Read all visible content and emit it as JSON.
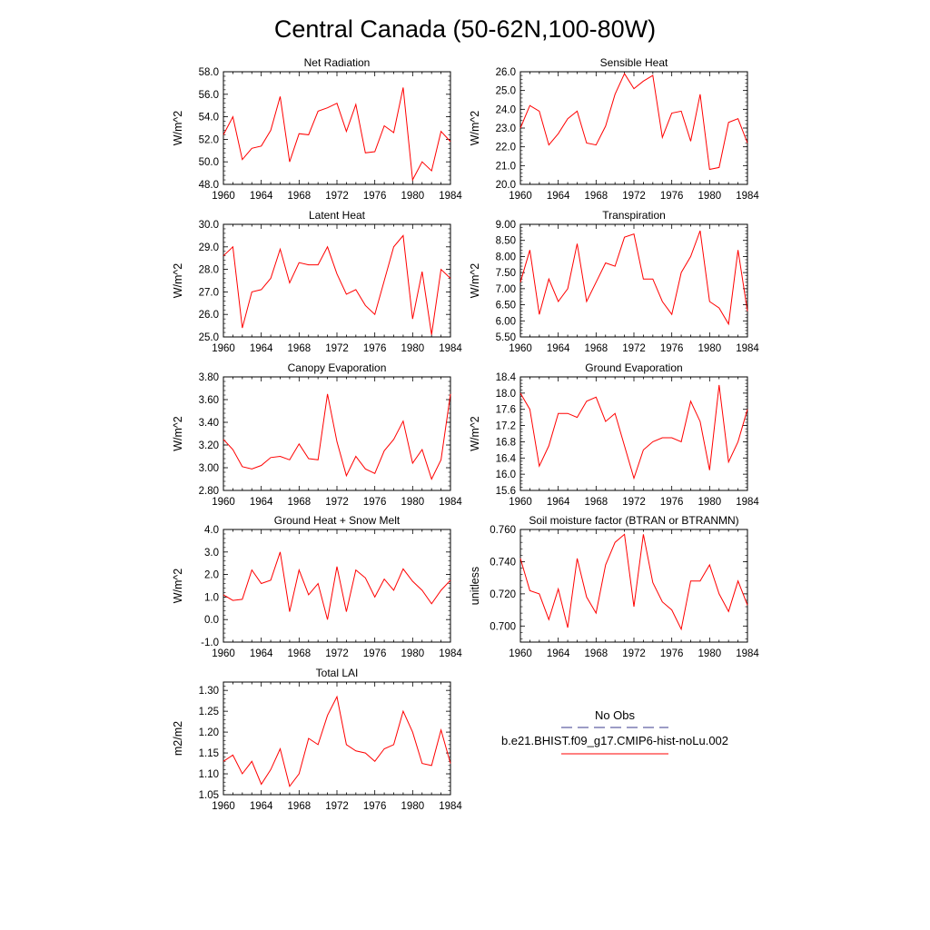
{
  "figure": {
    "title": "Central Canada (50-62N,100-80W)"
  },
  "legend": {
    "entries": [
      {
        "label": "No Obs",
        "color": "#3a3a8c",
        "style": "dashed"
      },
      {
        "label": "b.e21.BHIST.f09_g17.CMIP6-hist-noLu.002",
        "color": "#ff0000",
        "style": "solid"
      }
    ]
  },
  "colors": {
    "series": "#ff0000",
    "axis": "#000000"
  },
  "chart_data": [
    {
      "type": "line",
      "title": "Net Radiation",
      "ylabel": "W/m^2",
      "xlim": [
        1960,
        1984
      ],
      "ylim": [
        48.0,
        58.0
      ],
      "xticks": [
        1960,
        1964,
        1968,
        1972,
        1976,
        1980,
        1984
      ],
      "xtick_labels": [
        "1960",
        "1964",
        "1968",
        "1972",
        "1976",
        "1980",
        "1984"
      ],
      "yticks": [
        48,
        50,
        52,
        54,
        56,
        58
      ],
      "ytick_labels": [
        "48.0",
        "50.0",
        "52.0",
        "54.0",
        "56.0",
        "58.0"
      ],
      "x": [
        1960,
        1961,
        1962,
        1963,
        1964,
        1965,
        1966,
        1967,
        1968,
        1969,
        1970,
        1971,
        1972,
        1973,
        1974,
        1975,
        1976,
        1977,
        1978,
        1979,
        1980,
        1981,
        1982,
        1983,
        1984
      ],
      "series": [
        {
          "name": "b.e21.BHIST.f09_g17.CMIP6-hist-noLu.002",
          "values": [
            52.4,
            54.0,
            50.2,
            51.2,
            51.4,
            52.8,
            55.8,
            50.0,
            52.5,
            52.4,
            54.5,
            54.8,
            55.2,
            52.7,
            55.1,
            50.8,
            50.9,
            53.2,
            52.6,
            56.6,
            48.4,
            50.0,
            49.2,
            52.7,
            51.8
          ]
        }
      ]
    },
    {
      "type": "line",
      "title": "Sensible Heat",
      "ylabel": "W/m^2",
      "xlim": [
        1960,
        1984
      ],
      "ylim": [
        20.0,
        26.0
      ],
      "xticks": [
        1960,
        1964,
        1968,
        1972,
        1976,
        1980,
        1984
      ],
      "xtick_labels": [
        "1960",
        "1964",
        "1968",
        "1972",
        "1976",
        "1980",
        "1984"
      ],
      "yticks": [
        20,
        21,
        22,
        23,
        24,
        25,
        26
      ],
      "ytick_labels": [
        "20.0",
        "21.0",
        "22.0",
        "23.0",
        "24.0",
        "25.0",
        "26.0"
      ],
      "x": [
        1960,
        1961,
        1962,
        1963,
        1964,
        1965,
        1966,
        1967,
        1968,
        1969,
        1970,
        1971,
        1972,
        1973,
        1974,
        1975,
        1976,
        1977,
        1978,
        1979,
        1980,
        1981,
        1982,
        1983,
        1984
      ],
      "series": [
        {
          "name": "b.e21.BHIST.f09_g17.CMIP6-hist-noLu.002",
          "values": [
            23.0,
            24.2,
            23.9,
            22.1,
            22.7,
            23.5,
            23.9,
            22.2,
            22.1,
            23.1,
            24.8,
            25.9,
            25.1,
            25.5,
            25.8,
            22.5,
            23.8,
            23.9,
            22.3,
            24.8,
            20.8,
            20.9,
            23.3,
            23.5,
            22.2
          ]
        }
      ]
    },
    {
      "type": "line",
      "title": "Latent Heat",
      "ylabel": "W/m^2",
      "xlim": [
        1960,
        1984
      ],
      "ylim": [
        25.0,
        30.0
      ],
      "xticks": [
        1960,
        1964,
        1968,
        1972,
        1976,
        1980,
        1984
      ],
      "xtick_labels": [
        "1960",
        "1964",
        "1968",
        "1972",
        "1976",
        "1980",
        "1984"
      ],
      "yticks": [
        25,
        26,
        27,
        28,
        29,
        30
      ],
      "ytick_labels": [
        "25.0",
        "26.0",
        "27.0",
        "28.0",
        "29.0",
        "30.0"
      ],
      "x": [
        1960,
        1961,
        1962,
        1963,
        1964,
        1965,
        1966,
        1967,
        1968,
        1969,
        1970,
        1971,
        1972,
        1973,
        1974,
        1975,
        1976,
        1977,
        1978,
        1979,
        1980,
        1981,
        1982,
        1983,
        1984
      ],
      "series": [
        {
          "name": "b.e21.BHIST.f09_g17.CMIP6-hist-noLu.002",
          "values": [
            28.6,
            29.0,
            25.4,
            27.0,
            27.1,
            27.6,
            28.9,
            27.4,
            28.3,
            28.2,
            28.2,
            29.0,
            27.8,
            26.9,
            27.1,
            26.4,
            26.0,
            27.5,
            29.0,
            29.5,
            25.8,
            27.9,
            25.1,
            28.0,
            27.6
          ]
        }
      ]
    },
    {
      "type": "line",
      "title": "Transpiration",
      "ylabel": "W/m^2",
      "xlim": [
        1960,
        1984
      ],
      "ylim": [
        5.5,
        9.0
      ],
      "xticks": [
        1960,
        1964,
        1968,
        1972,
        1976,
        1980,
        1984
      ],
      "xtick_labels": [
        "1960",
        "1964",
        "1968",
        "1972",
        "1976",
        "1980",
        "1984"
      ],
      "yticks": [
        5.5,
        6.0,
        6.5,
        7.0,
        7.5,
        8.0,
        8.5,
        9.0
      ],
      "ytick_labels": [
        "5.50",
        "6.00",
        "6.50",
        "7.00",
        "7.50",
        "8.00",
        "8.50",
        "9.00"
      ],
      "x": [
        1960,
        1961,
        1962,
        1963,
        1964,
        1965,
        1966,
        1967,
        1968,
        1969,
        1970,
        1971,
        1972,
        1973,
        1974,
        1975,
        1976,
        1977,
        1978,
        1979,
        1980,
        1981,
        1982,
        1983,
        1984
      ],
      "series": [
        {
          "name": "b.e21.BHIST.f09_g17.CMIP6-hist-noLu.002",
          "values": [
            7.2,
            8.2,
            6.2,
            7.3,
            6.6,
            7.0,
            8.4,
            6.6,
            7.2,
            7.8,
            7.7,
            8.6,
            8.7,
            7.3,
            7.3,
            6.6,
            6.2,
            7.5,
            8.0,
            8.8,
            6.6,
            6.4,
            5.9,
            8.2,
            6.3
          ]
        }
      ]
    },
    {
      "type": "line",
      "title": "Canopy Evaporation",
      "ylabel": "W/m^2",
      "xlim": [
        1960,
        1984
      ],
      "ylim": [
        2.8,
        3.8
      ],
      "xticks": [
        1960,
        1964,
        1968,
        1972,
        1976,
        1980,
        1984
      ],
      "xtick_labels": [
        "1960",
        "1964",
        "1968",
        "1972",
        "1976",
        "1980",
        "1984"
      ],
      "yticks": [
        2.8,
        3.0,
        3.2,
        3.4,
        3.6,
        3.8
      ],
      "ytick_labels": [
        "2.80",
        "3.00",
        "3.20",
        "3.40",
        "3.60",
        "3.80"
      ],
      "x": [
        1960,
        1961,
        1962,
        1963,
        1964,
        1965,
        1966,
        1967,
        1968,
        1969,
        1970,
        1971,
        1972,
        1973,
        1974,
        1975,
        1976,
        1977,
        1978,
        1979,
        1980,
        1981,
        1982,
        1983,
        1984
      ],
      "series": [
        {
          "name": "b.e21.BHIST.f09_g17.CMIP6-hist-noLu.002",
          "values": [
            3.25,
            3.16,
            3.01,
            2.99,
            3.02,
            3.09,
            3.1,
            3.07,
            3.21,
            3.08,
            3.07,
            3.65,
            3.23,
            2.93,
            3.1,
            2.99,
            2.95,
            3.15,
            3.25,
            3.41,
            3.04,
            3.16,
            2.9,
            3.07,
            3.65
          ]
        }
      ]
    },
    {
      "type": "line",
      "title": "Ground Evaporation",
      "ylabel": "W/m^2",
      "xlim": [
        1960,
        1984
      ],
      "ylim": [
        15.6,
        18.4
      ],
      "xticks": [
        1960,
        1964,
        1968,
        1972,
        1976,
        1980,
        1984
      ],
      "xtick_labels": [
        "1960",
        "1964",
        "1968",
        "1972",
        "1976",
        "1980",
        "1984"
      ],
      "yticks": [
        15.6,
        16.0,
        16.4,
        16.8,
        17.2,
        17.6,
        18.0,
        18.4
      ],
      "ytick_labels": [
        "15.6",
        "16.0",
        "16.4",
        "16.8",
        "17.2",
        "17.6",
        "18.0",
        "18.4"
      ],
      "x": [
        1960,
        1961,
        1962,
        1963,
        1964,
        1965,
        1966,
        1967,
        1968,
        1969,
        1970,
        1971,
        1972,
        1973,
        1974,
        1975,
        1976,
        1977,
        1978,
        1979,
        1980,
        1981,
        1982,
        1983,
        1984
      ],
      "series": [
        {
          "name": "b.e21.BHIST.f09_g17.CMIP6-hist-noLu.002",
          "values": [
            18.0,
            17.6,
            16.2,
            16.7,
            17.5,
            17.5,
            17.4,
            17.8,
            17.9,
            17.3,
            17.5,
            16.7,
            15.9,
            16.6,
            16.8,
            16.9,
            16.9,
            16.8,
            17.8,
            17.3,
            16.1,
            18.2,
            16.3,
            16.8,
            17.6
          ]
        }
      ]
    },
    {
      "type": "line",
      "title": "Ground Heat + Snow Melt",
      "ylabel": "W/m^2",
      "xlim": [
        1960,
        1984
      ],
      "ylim": [
        -1.0,
        4.0
      ],
      "xticks": [
        1960,
        1964,
        1968,
        1972,
        1976,
        1980,
        1984
      ],
      "xtick_labels": [
        "1960",
        "1964",
        "1968",
        "1972",
        "1976",
        "1980",
        "1984"
      ],
      "yticks": [
        -1,
        0,
        1,
        2,
        3,
        4
      ],
      "ytick_labels": [
        "-1.0",
        "0.0",
        "1.0",
        "2.0",
        "3.0",
        "4.0"
      ],
      "x": [
        1960,
        1961,
        1962,
        1963,
        1964,
        1965,
        1966,
        1967,
        1968,
        1969,
        1970,
        1971,
        1972,
        1973,
        1974,
        1975,
        1976,
        1977,
        1978,
        1979,
        1980,
        1981,
        1982,
        1983,
        1984
      ],
      "series": [
        {
          "name": "b.e21.BHIST.f09_g17.CMIP6-hist-noLu.002",
          "values": [
            1.1,
            0.85,
            0.9,
            2.2,
            1.6,
            1.75,
            3.0,
            0.35,
            2.2,
            1.1,
            1.6,
            0.0,
            2.35,
            0.35,
            2.2,
            1.85,
            1.0,
            1.8,
            1.3,
            2.25,
            1.7,
            1.3,
            0.7,
            1.3,
            1.75
          ]
        }
      ]
    },
    {
      "type": "line",
      "title": "Soil moisture factor (BTRAN or BTRANMN)",
      "ylabel": "unitless",
      "xlim": [
        1960,
        1984
      ],
      "ylim": [
        0.69,
        0.76
      ],
      "xticks": [
        1960,
        1964,
        1968,
        1972,
        1976,
        1980,
        1984
      ],
      "xtick_labels": [
        "1960",
        "1964",
        "1968",
        "1972",
        "1976",
        "1980",
        "1984"
      ],
      "yticks": [
        0.7,
        0.72,
        0.74,
        0.76
      ],
      "ytick_labels": [
        "0.700",
        "0.720",
        "0.740",
        "0.760"
      ],
      "x": [
        1960,
        1961,
        1962,
        1963,
        1964,
        1965,
        1966,
        1967,
        1968,
        1969,
        1970,
        1971,
        1972,
        1973,
        1974,
        1975,
        1976,
        1977,
        1978,
        1979,
        1980,
        1981,
        1982,
        1983,
        1984
      ],
      "series": [
        {
          "name": "b.e21.BHIST.f09_g17.CMIP6-hist-noLu.002",
          "values": [
            0.742,
            0.722,
            0.72,
            0.704,
            0.723,
            0.699,
            0.742,
            0.718,
            0.708,
            0.738,
            0.752,
            0.757,
            0.712,
            0.757,
            0.727,
            0.715,
            0.71,
            0.698,
            0.728,
            0.728,
            0.738,
            0.72,
            0.709,
            0.728,
            0.713
          ]
        }
      ]
    },
    {
      "type": "line",
      "title": "Total LAI",
      "ylabel": "m2/m2",
      "xlim": [
        1960,
        1984
      ],
      "ylim": [
        1.05,
        1.32
      ],
      "xticks": [
        1960,
        1964,
        1968,
        1972,
        1976,
        1980,
        1984
      ],
      "xtick_labels": [
        "1960",
        "1964",
        "1968",
        "1972",
        "1976",
        "1980",
        "1984"
      ],
      "yticks": [
        1.05,
        1.1,
        1.15,
        1.2,
        1.25,
        1.3
      ],
      "ytick_labels": [
        "1.05",
        "1.10",
        "1.15",
        "1.20",
        "1.25",
        "1.30"
      ],
      "x": [
        1960,
        1961,
        1962,
        1963,
        1964,
        1965,
        1966,
        1967,
        1968,
        1969,
        1970,
        1971,
        1972,
        1973,
        1974,
        1975,
        1976,
        1977,
        1978,
        1979,
        1980,
        1981,
        1982,
        1983,
        1984
      ],
      "series": [
        {
          "name": "b.e21.BHIST.f09_g17.CMIP6-hist-noLu.002",
          "values": [
            1.13,
            1.145,
            1.1,
            1.13,
            1.075,
            1.11,
            1.16,
            1.07,
            1.1,
            1.185,
            1.17,
            1.24,
            1.285,
            1.17,
            1.155,
            1.15,
            1.13,
            1.16,
            1.17,
            1.25,
            1.2,
            1.125,
            1.12,
            1.205,
            1.125
          ]
        }
      ]
    }
  ]
}
